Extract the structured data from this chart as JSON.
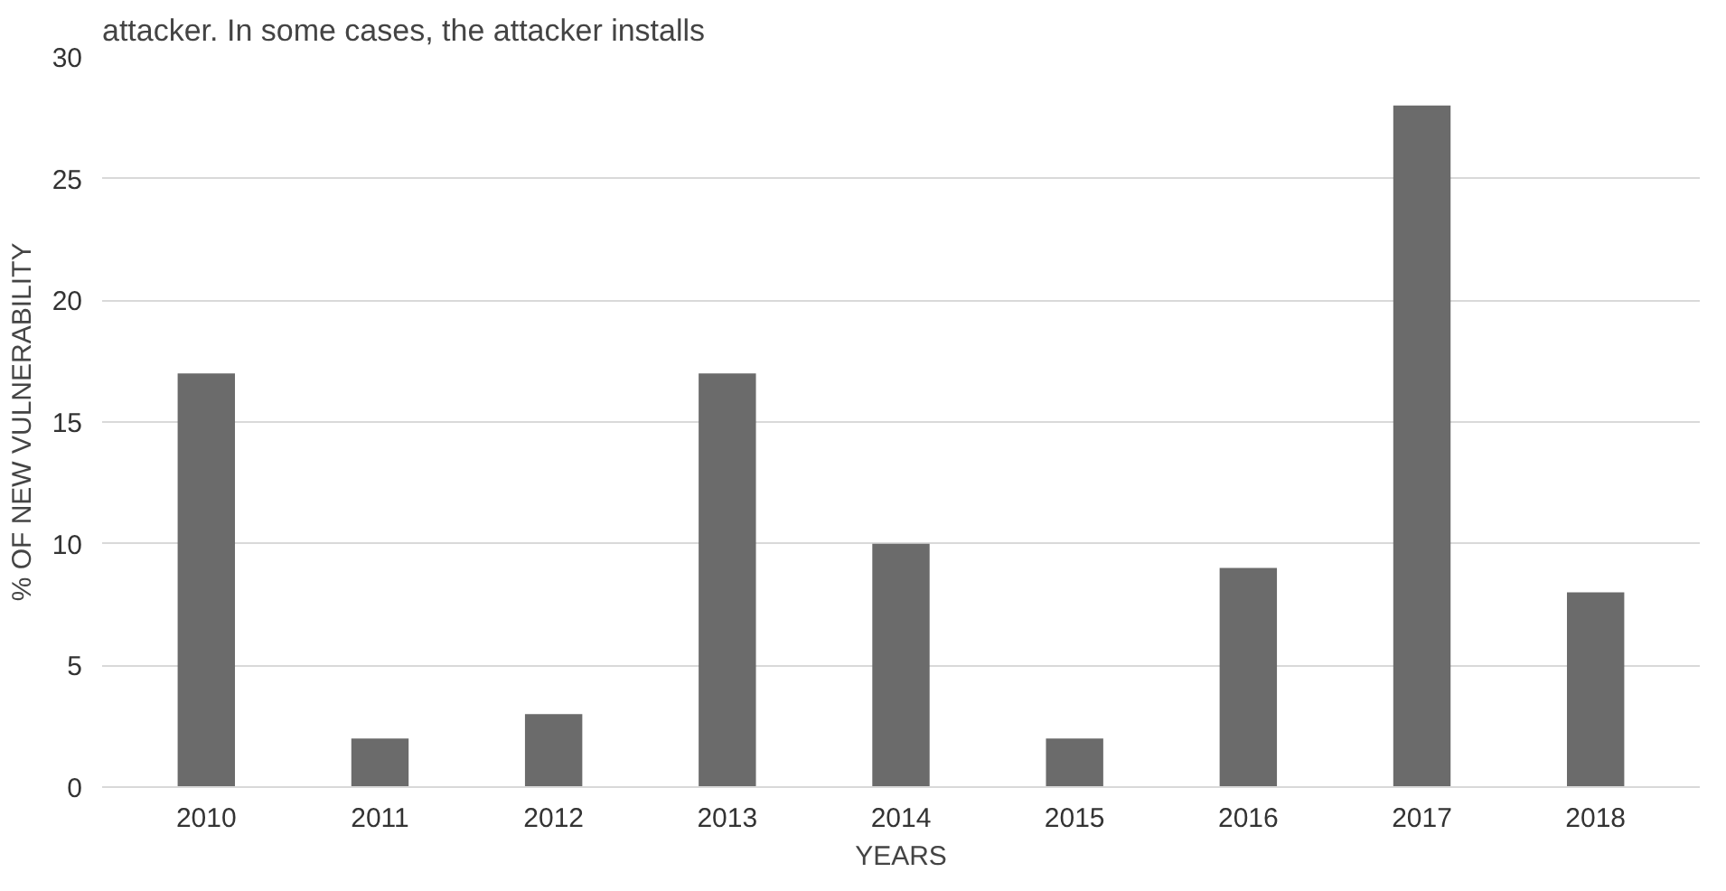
{
  "chart_data": {
    "type": "bar",
    "categories": [
      "2010",
      "2011",
      "2012",
      "2013",
      "2014",
      "2015",
      "2016",
      "2017",
      "2018"
    ],
    "values": [
      17,
      2,
      3,
      17,
      10,
      2,
      9,
      28,
      8
    ],
    "color": "#6b6b6b",
    "xlabel": "YEARS",
    "ylabel": "% OF NEW VULNERABILITY",
    "ylim": [
      0,
      30
    ],
    "yticks": [
      0,
      5,
      10,
      15,
      20,
      25,
      30
    ],
    "grid": "y",
    "annotations": [
      "attacker. In some cases, the attacker installs"
    ]
  }
}
